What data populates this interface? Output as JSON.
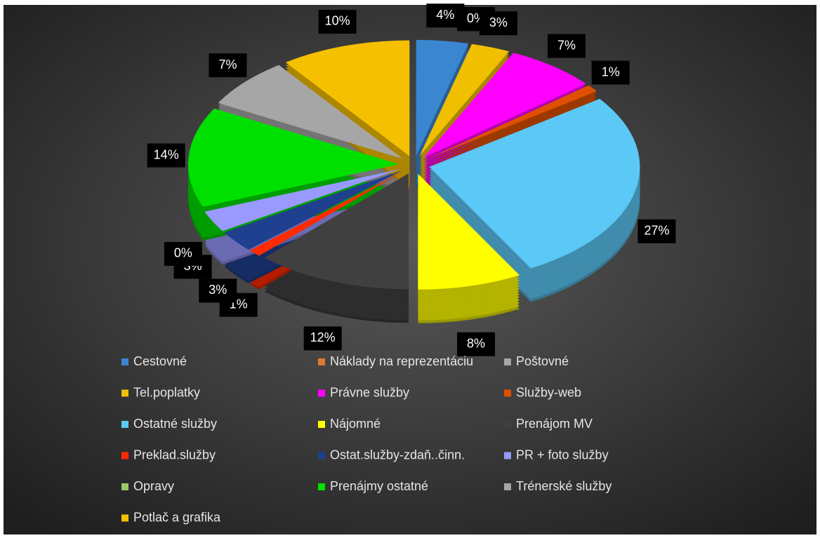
{
  "chart_data": {
    "type": "pie",
    "categories": [
      "Cestovné",
      "Náklady na reprezentáciu",
      "Poštovné",
      "Tel.poplatky",
      "Právne služby",
      "Služby-web",
      "Ostatné služby",
      "Nájomné",
      "Prenájom MV",
      "Preklad.služby",
      "Ostat.služby-zdaň..činn.",
      "PR + foto služby",
      "Opravy",
      "Prenájmy ostatné",
      "Trénerské služby",
      "Potlač a grafika"
    ],
    "values": [
      4,
      0,
      0,
      3,
      7,
      1,
      27,
      8,
      12,
      1,
      3,
      3,
      0,
      14,
      7,
      10
    ],
    "value_labels": [
      "4%",
      "0%",
      "0%",
      "3%",
      "7%",
      "1%",
      "27%",
      "8%",
      "12%",
      "1%",
      "3%",
      "3%",
      "0%",
      "14%",
      "7%",
      "10%"
    ],
    "colors": [
      "#3a86d0",
      "#e07a30",
      "#a6a6a6",
      "#f0c000",
      "#ff00ff",
      "#e05000",
      "#5bc8f5",
      "#ffff00",
      "#404040",
      "#ff2a00",
      "#1f3f8f",
      "#9999ff",
      "#99cc66",
      "#00e000",
      "#a6a6a6",
      "#f5c000"
    ],
    "legend": "bottom"
  }
}
